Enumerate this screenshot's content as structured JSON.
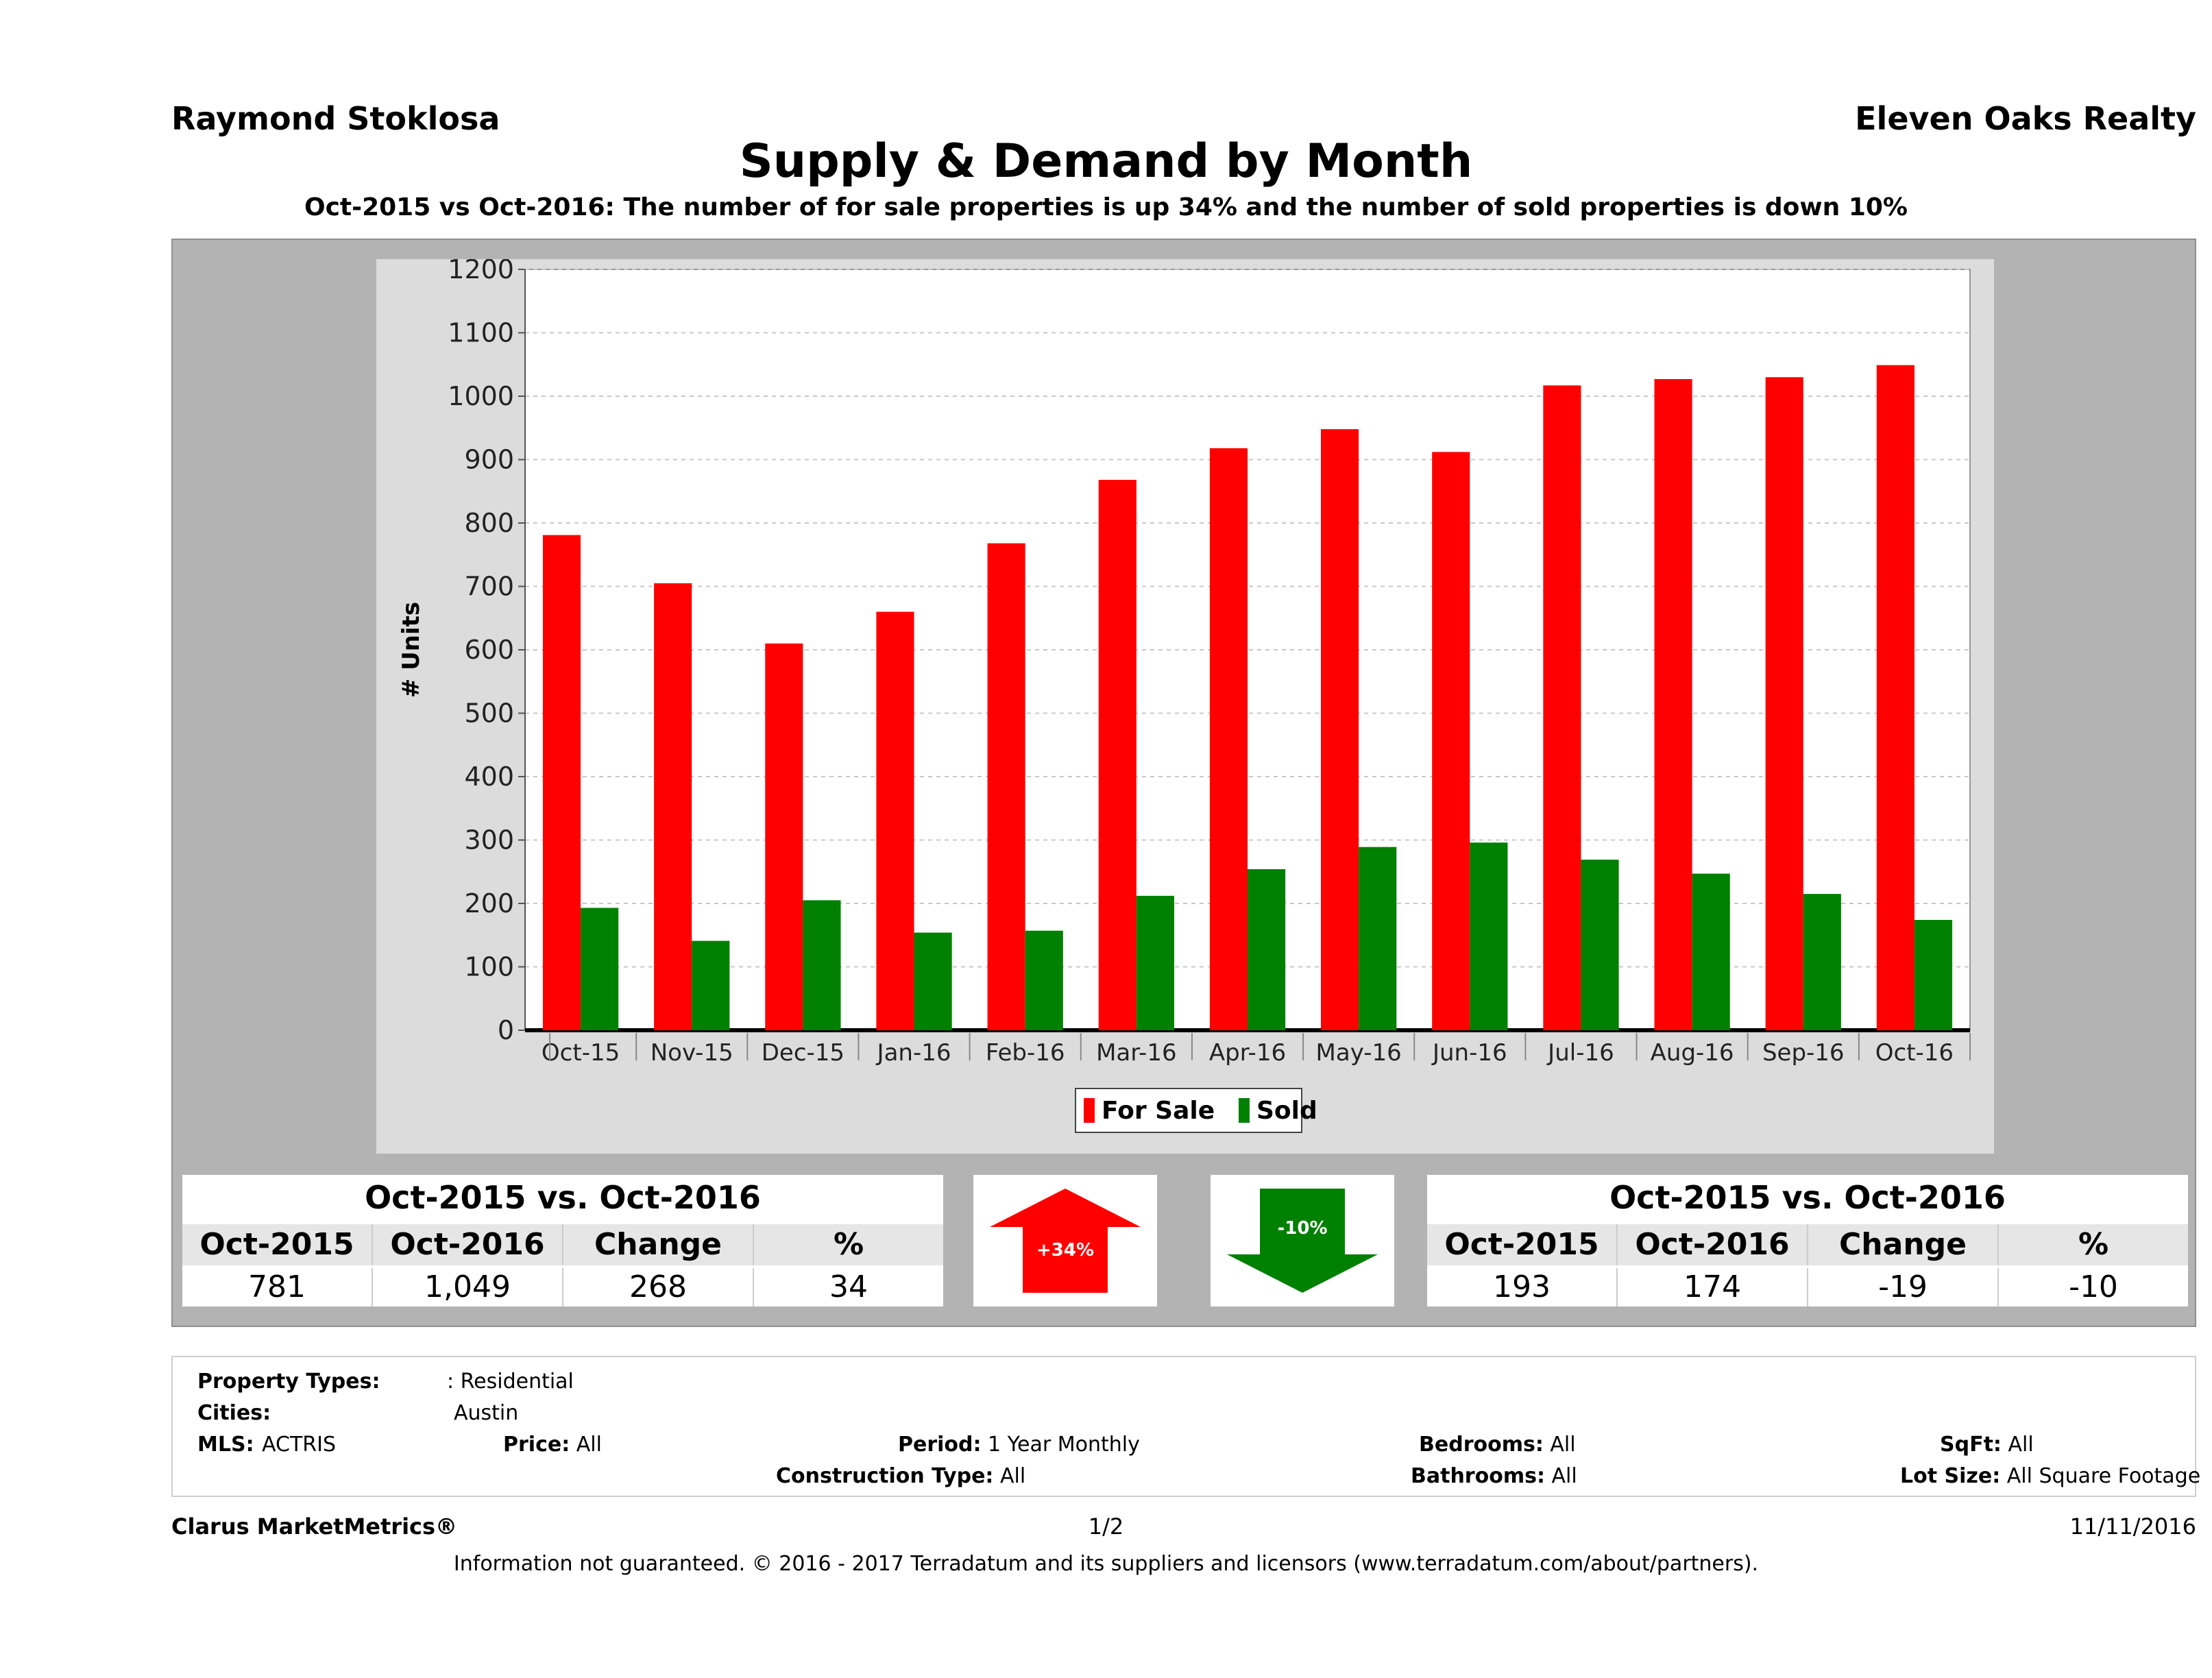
{
  "header": {
    "agent": "Raymond Stoklosa",
    "company": "Eleven Oaks Realty",
    "title": "Supply & Demand by Month",
    "subtitle": "Oct-2015 vs Oct-2016: The number of for sale properties is up 34% and the number of sold properties is down 10%"
  },
  "chart_data": {
    "type": "bar",
    "title": "",
    "xlabel": "",
    "ylabel": "# Units",
    "ylim": [
      0,
      1200
    ],
    "yticks": [
      0,
      100,
      200,
      300,
      400,
      500,
      600,
      700,
      800,
      900,
      1000,
      1100,
      1200
    ],
    "grid": true,
    "legend_position": "bottom",
    "categories": [
      "Oct-15",
      "Nov-15",
      "Dec-15",
      "Jan-16",
      "Feb-16",
      "Mar-16",
      "Apr-16",
      "May-16",
      "Jun-16",
      "Jul-16",
      "Aug-16",
      "Sep-16",
      "Oct-16"
    ],
    "series": [
      {
        "name": "For Sale",
        "color": "#ff0000",
        "values": [
          781,
          705,
          610,
          660,
          768,
          868,
          918,
          948,
          912,
          1017,
          1027,
          1030,
          1049
        ]
      },
      {
        "name": "Sold",
        "color": "#008000",
        "values": [
          193,
          141,
          205,
          154,
          157,
          212,
          254,
          289,
          296,
          269,
          247,
          215,
          174
        ]
      }
    ]
  },
  "forsale_table": {
    "caption": "Oct-2015 vs. Oct-2016",
    "headers": [
      "Oct-2015",
      "Oct-2016",
      "Change",
      "%"
    ],
    "values": [
      "781",
      "1,049",
      "268",
      "34"
    ]
  },
  "sold_table": {
    "caption": "Oct-2015 vs. Oct-2016",
    "headers": [
      "Oct-2015",
      "Oct-2016",
      "Change",
      "%"
    ],
    "values": [
      "193",
      "174",
      "-19",
      "-10"
    ]
  },
  "arrows": {
    "up_label": "+34%",
    "up_color": "#ff0000",
    "down_label": "-10%",
    "down_color": "#008000"
  },
  "info": {
    "property_types_label": "Property Types:",
    "property_types_value": ": Residential",
    "cities_label": "Cities:",
    "cities_value": "Austin",
    "mls_label": "MLS:",
    "mls_value": "ACTRIS",
    "price_label": "Price:",
    "price_value": "All",
    "period_label": "Period:",
    "period_value": "1 Year Monthly",
    "construction_label": "Construction Type:",
    "construction_value": "All",
    "bedrooms_label": "Bedrooms:",
    "bedrooms_value": "All",
    "bathrooms_label": "Bathrooms:",
    "bathrooms_value": "All",
    "sqft_label": "SqFt:",
    "sqft_value": "All",
    "lotsize_label": "Lot Size:",
    "lotsize_value": "All Square Footage"
  },
  "footer": {
    "brand": "Clarus MarketMetrics®",
    "page": "1/2",
    "date": "11/11/2016",
    "disclaimer": "Information not guaranteed. © 2016 - 2017 Terradatum and its suppliers and licensors (www.terradatum.com/about/partners)."
  }
}
